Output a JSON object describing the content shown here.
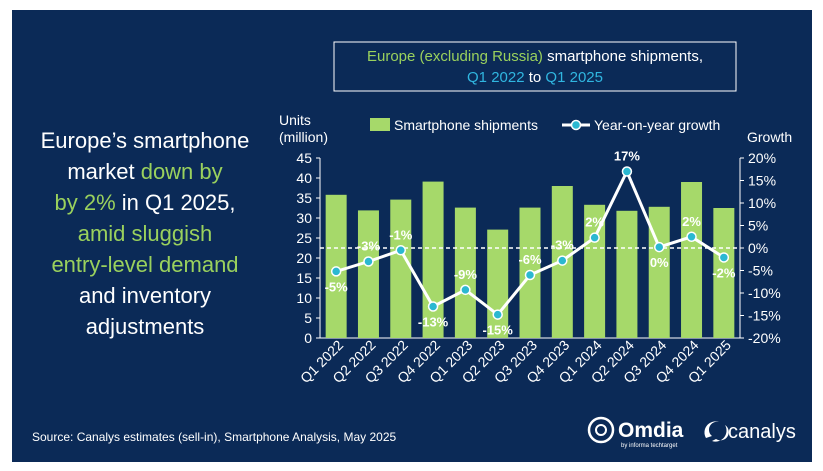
{
  "colors": {
    "background": "#0b2a57",
    "bar": "#a6d96a",
    "line": "#ffffff",
    "marker_fill": "#2bb8d1",
    "green_text": "#9ad15d",
    "cyan_text": "#30b6e0",
    "white_text": "#ffffff"
  },
  "headline": {
    "lines": [
      [
        {
          "text": "Europe’s smartphone",
          "tone": "white"
        }
      ],
      [
        {
          "text": "market ",
          "tone": "white"
        },
        {
          "text": "down by",
          "tone": "green"
        }
      ],
      [
        {
          "text": "by 2%",
          "tone": "green"
        },
        {
          "text": " in Q1 2025,",
          "tone": "white"
        }
      ],
      [
        {
          "text": "amid sluggish",
          "tone": "green"
        }
      ],
      [
        {
          "text": "entry-level demand",
          "tone": "green"
        }
      ],
      [
        {
          "text": "and inventory",
          "tone": "white"
        }
      ],
      [
        {
          "text": "adjustments",
          "tone": "white"
        }
      ]
    ]
  },
  "chart_title": {
    "line1": [
      {
        "text": "Europe (excluding Russia)",
        "tone": "green"
      },
      {
        "text": " smartphone shipments,",
        "tone": "white"
      }
    ],
    "line2": [
      {
        "text": "Q1 2022",
        "tone": "cyan"
      },
      {
        "text": " to ",
        "tone": "white"
      },
      {
        "text": "Q1 2025",
        "tone": "cyan"
      }
    ]
  },
  "footer": {
    "source": "Source: Canalys estimates (sell-in), Smartphone Analysis, May 2025"
  },
  "logos": {
    "omdia": "Omdia",
    "omdia_sub": "by informa techtarget",
    "canalys": "canalys"
  },
  "chart_data": {
    "type": "bar",
    "categories": [
      "Q1 2022",
      "Q2 2022",
      "Q3 2022",
      "Q4 2022",
      "Q1 2023",
      "Q2 2023",
      "Q3 2023",
      "Q4 2023",
      "Q1 2024",
      "Q2 2024",
      "Q3 2024",
      "Q4 2024",
      "Q1 2025"
    ],
    "series": [
      {
        "name": "Smartphone shipments",
        "type": "bar",
        "axis": "left",
        "values": [
          35.8,
          31.9,
          34.6,
          39.1,
          32.6,
          27.1,
          32.6,
          38.0,
          33.3,
          31.8,
          32.8,
          39.0,
          32.5
        ]
      },
      {
        "name": "Year-on-year growth",
        "type": "line",
        "axis": "right",
        "values": [
          -5.2,
          -3.0,
          -0.5,
          -13.0,
          -9.3,
          -14.8,
          -6.0,
          -2.8,
          2.3,
          17.0,
          0.2,
          2.5,
          -2.1
        ],
        "labels": [
          "-5%",
          "-3%",
          "-1%",
          "-13%",
          "-9%",
          "-15%",
          "-6%",
          "-3%",
          "2%",
          "17%",
          "0%",
          "2%",
          "-2%"
        ]
      }
    ],
    "left_axis": {
      "title_lines": [
        "Units",
        "(million)"
      ],
      "ylim": [
        0,
        45
      ],
      "ticks": [
        0,
        5,
        10,
        15,
        20,
        25,
        30,
        35,
        40,
        45
      ],
      "tick_labels": [
        "0",
        "5",
        "10",
        "15",
        "20",
        "25",
        "30",
        "35",
        "40",
        "45"
      ]
    },
    "right_axis": {
      "title": "Growth",
      "ylim": [
        -20,
        20
      ],
      "ticks": [
        -20,
        -15,
        -10,
        -5,
        0,
        5,
        10,
        15,
        20
      ],
      "tick_labels": [
        "-20%",
        "-15%",
        "-10%",
        "-5%",
        "0%",
        "5%",
        "10%",
        "15%",
        "20%"
      ]
    },
    "zero_line": "dashed",
    "grid": false,
    "legend": {
      "placement": "top",
      "entries": [
        "Smartphone shipments",
        "Year-on-year growth"
      ]
    }
  }
}
